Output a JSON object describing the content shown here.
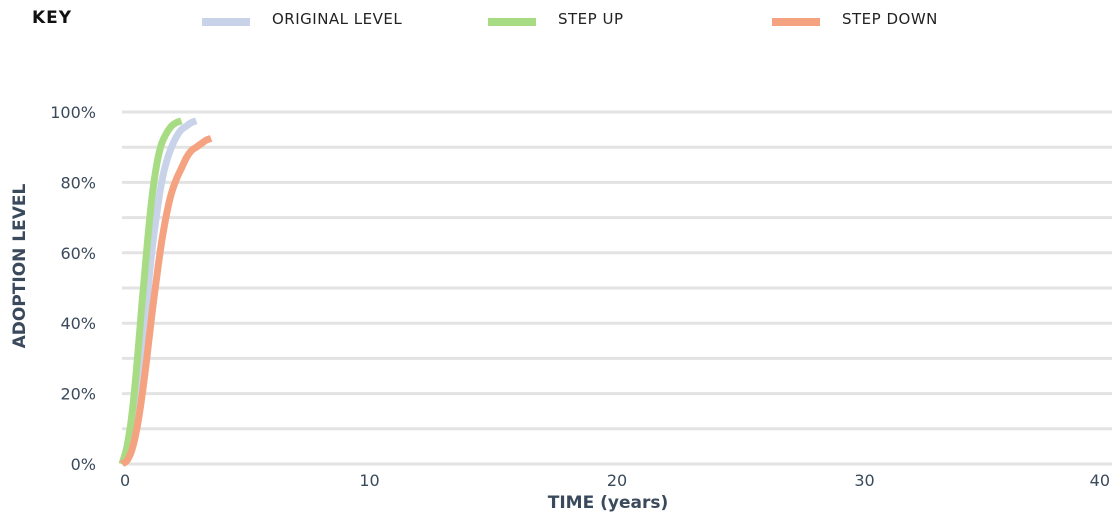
{
  "legend": {
    "title": "KEY",
    "items": [
      {
        "label": "ORIGINAL LEVEL",
        "color": "#c8d3ea"
      },
      {
        "label": "STEP UP",
        "color": "#a8dc84"
      },
      {
        "label": "STEP DOWN",
        "color": "#f5a280"
      }
    ]
  },
  "chart_data": {
    "type": "line",
    "title": "",
    "xlabel": "TIME (years)",
    "ylabel": "ADOPTION LEVEL",
    "xlim": [
      0,
      40
    ],
    "ylim": [
      0,
      100
    ],
    "x_ticks": [
      "0",
      "10",
      "20",
      "30",
      "40"
    ],
    "y_ticks": [
      "0%",
      "20%",
      "40%",
      "60%",
      "80%",
      "100%"
    ],
    "grid": true,
    "legend_position": "top",
    "series": [
      {
        "name": "ORIGINAL LEVEL",
        "color": "#c8d3ea",
        "x": [
          0,
          0.2,
          0.4,
          0.6,
          0.8,
          1.0,
          1.2,
          1.4,
          1.6,
          1.8,
          2.0,
          2.2,
          2.4,
          2.6,
          2.8,
          3.0
        ],
        "y": [
          0,
          3,
          10,
          20,
          33,
          46,
          60,
          71,
          80,
          86,
          90,
          93,
          95,
          96,
          97,
          97.5
        ]
      },
      {
        "name": "STEP UP",
        "color": "#a8dc84",
        "x": [
          0,
          0.2,
          0.4,
          0.6,
          0.8,
          1.0,
          1.2,
          1.4,
          1.6,
          1.8,
          2.0,
          2.2,
          2.4
        ],
        "y": [
          0,
          5,
          14,
          28,
          45,
          61,
          75,
          85,
          91,
          94,
          96,
          97,
          97.5
        ]
      },
      {
        "name": "STEP DOWN",
        "color": "#f5a280",
        "x": [
          0,
          0.2,
          0.4,
          0.6,
          0.8,
          1.0,
          1.2,
          1.4,
          1.6,
          1.8,
          2.0,
          2.2,
          2.4,
          2.6,
          2.8,
          3.0,
          3.2,
          3.4,
          3.6
        ],
        "y": [
          0,
          1,
          4,
          10,
          19,
          30,
          42,
          53,
          63,
          71,
          77,
          81,
          84,
          87,
          89,
          90,
          91,
          92,
          92.5
        ]
      }
    ]
  }
}
